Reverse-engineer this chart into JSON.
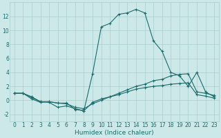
{
  "x": [
    0,
    1,
    2,
    3,
    4,
    5,
    6,
    7,
    8,
    9,
    10,
    11,
    12,
    13,
    14,
    15,
    16,
    17,
    18,
    19,
    20,
    21,
    22,
    23
  ],
  "line1": [
    1.0,
    1.0,
    0.5,
    -0.2,
    -0.3,
    -1.0,
    -0.8,
    -1.2,
    -1.5,
    3.8,
    10.5,
    11.0,
    12.3,
    12.5,
    13.0,
    12.5,
    8.5,
    7.0,
    4.0,
    3.5,
    2.0,
    4.0,
    1.2,
    0.5
  ],
  "line2": [
    1.0,
    1.0,
    0.4,
    -0.2,
    -0.2,
    -0.4,
    -0.5,
    -1.0,
    -1.2,
    -0.5,
    0.0,
    0.5,
    1.0,
    1.5,
    2.0,
    2.3,
    2.8,
    3.0,
    3.5,
    3.7,
    3.8,
    1.2,
    1.0,
    0.7
  ],
  "line3": [
    1.0,
    1.0,
    0.2,
    -0.3,
    -0.2,
    -0.4,
    -0.4,
    -1.3,
    -1.5,
    -0.3,
    0.2,
    0.5,
    0.8,
    1.2,
    1.6,
    1.8,
    2.0,
    2.1,
    2.3,
    2.4,
    2.5,
    0.8,
    0.6,
    0.3
  ],
  "bg_color": "#cce8e8",
  "line_color": "#1a6b6b",
  "grid_color": "#aacece",
  "xlabel": "Humidex (Indice chaleur)",
  "ylim": [
    -3,
    14
  ],
  "xlim": [
    -0.5,
    23.5
  ],
  "yticks": [
    -2,
    0,
    2,
    4,
    6,
    8,
    10,
    12
  ],
  "xticks": [
    0,
    1,
    2,
    3,
    4,
    5,
    6,
    7,
    8,
    9,
    10,
    11,
    12,
    13,
    14,
    15,
    16,
    17,
    18,
    19,
    20,
    21,
    22,
    23
  ],
  "xlabel_fontsize": 6.5,
  "tick_fontsize": 5.5,
  "linewidth": 0.8,
  "markersize": 3.0
}
